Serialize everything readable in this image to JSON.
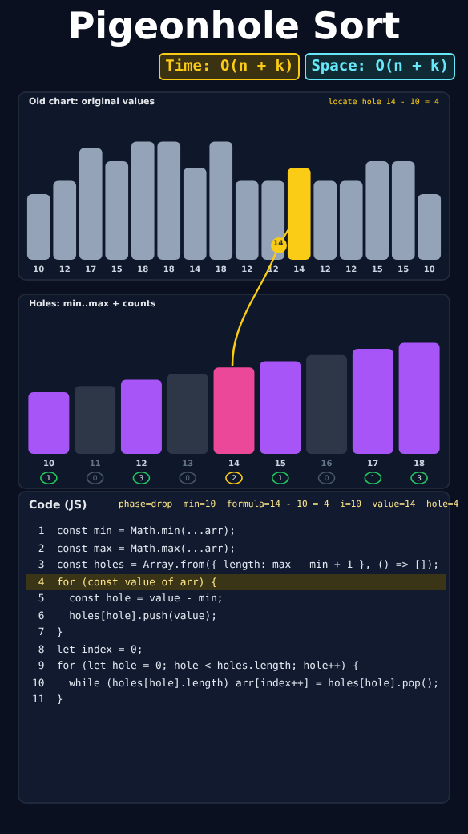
{
  "chart_data": [
    {
      "type": "bar",
      "title": "Pigeonhole Sort",
      "subtitle": "Old chart: original values",
      "categories": [
        null,
        null,
        null,
        null,
        null,
        null,
        null,
        null,
        null,
        null,
        null,
        null,
        null,
        null,
        null,
        null
      ],
      "values": [
        10,
        12,
        17,
        15,
        18,
        18,
        14,
        18,
        12,
        12,
        14,
        12,
        12,
        15,
        15,
        10
      ],
      "colors": [
        "#94a3b8",
        "#94a3b8",
        "#94a3b8",
        "#94a3b8",
        "#94a3b8",
        "#94a3b8",
        "#94a3b8",
        "#94a3b8",
        "#94a3b8",
        "#94a3b8",
        "#facc15",
        "#94a3b8",
        "#94a3b8",
        "#94a3b8",
        "#94a3b8",
        "#94a3b8"
      ],
      "data_labels": true,
      "annotations": [
        "Time: O(n + k)",
        "Space: O(n + k)",
        "locate hole 14 - 10 = 4",
        "14"
      ]
    },
    {
      "type": "bar",
      "title": "Holes: min..max + counts",
      "categories": [
        null,
        null,
        null,
        null,
        null,
        null,
        null,
        null,
        null
      ],
      "values": [
        10,
        11,
        12,
        13,
        14,
        15,
        16,
        17,
        18
      ],
      "colors": [
        "#a855f7",
        "#2d3748",
        "#a855f7",
        "#2d3748",
        "#ec4899",
        "#a855f7",
        "#2d3748",
        "#a855f7",
        "#a855f7"
      ],
      "data_labels": true,
      "annotations": [
        "1",
        "0",
        "3",
        "0",
        "2",
        "1",
        "0",
        "1",
        "3"
      ]
    },
    {
      "type": "other",
      "title": "Code (JS)",
      "annotations": [
        "phase=drop  min=10  formula=14 - 10 = 4  i=10  value=14  hole=4",
        " 1  const min = Math.min(...arr);",
        " 2  const max = Math.max(...arr);",
        " 3  const holes = Array.from({ length: max - min + 1 }, () => []);",
        " 4  for (const value of arr) {",
        " 5    const hole = value - min;",
        " 6    holes[hole].push(value);",
        " 7  }",
        " 8  let index = 0;",
        " 9  for (let hole = 0; hole < holes.length; hole++) {",
        "10    while (holes[hole].length) arr[index++] = holes[hole].pop();",
        "11  }"
      ]
    }
  ]
}
